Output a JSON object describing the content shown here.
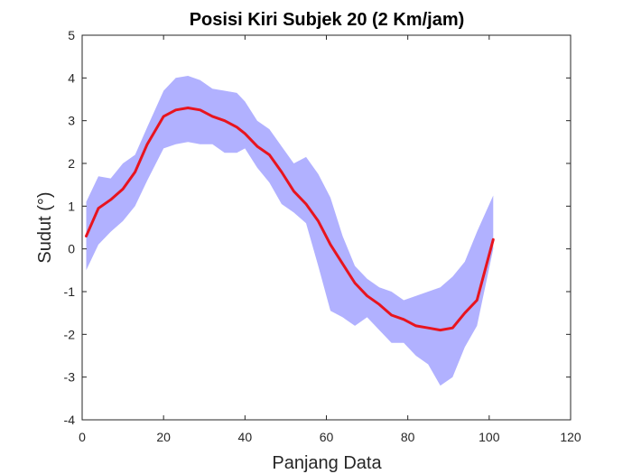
{
  "chart_data": {
    "type": "line",
    "title": "Posisi Kiri Subjek 20 (2 Km/jam)",
    "xlabel": "Panjang Data",
    "ylabel": "Sudut (°)",
    "xlim": [
      0,
      120
    ],
    "ylim": [
      -4,
      5
    ],
    "xticks": [
      0,
      20,
      40,
      60,
      80,
      100,
      120
    ],
    "yticks": [
      5,
      4,
      3,
      2,
      1,
      0,
      -1,
      -2,
      -3,
      -4
    ],
    "grid": false,
    "colors": {
      "mean_line": "#e8141e",
      "band": "#b1b1ff",
      "axis": "#262626"
    },
    "series": [
      {
        "name": "mean",
        "x": [
          1,
          4,
          7,
          10,
          13,
          16,
          20,
          23,
          26,
          29,
          32,
          35,
          38,
          40,
          43,
          46,
          49,
          52,
          55,
          58,
          61,
          64,
          67,
          70,
          73,
          76,
          79,
          82,
          85,
          88,
          91,
          94,
          97,
          101
        ],
        "values": [
          0.3,
          0.95,
          1.15,
          1.4,
          1.8,
          2.45,
          3.1,
          3.25,
          3.3,
          3.25,
          3.1,
          3.0,
          2.85,
          2.7,
          2.4,
          2.2,
          1.8,
          1.35,
          1.05,
          0.65,
          0.1,
          -0.35,
          -0.8,
          -1.1,
          -1.3,
          -1.55,
          -1.65,
          -1.8,
          -1.85,
          -1.9,
          -1.85,
          -1.5,
          -1.2,
          0.22
        ]
      },
      {
        "name": "upper",
        "x": [
          1,
          4,
          7,
          10,
          13,
          16,
          20,
          23,
          26,
          29,
          32,
          35,
          38,
          40,
          43,
          46,
          49,
          52,
          55,
          58,
          61,
          64,
          67,
          70,
          73,
          76,
          79,
          82,
          85,
          88,
          91,
          94,
          97,
          101
        ],
        "values": [
          1.1,
          1.7,
          1.65,
          2.0,
          2.2,
          2.85,
          3.7,
          4.0,
          4.05,
          3.95,
          3.75,
          3.7,
          3.65,
          3.45,
          3.0,
          2.8,
          2.4,
          2.0,
          2.15,
          1.75,
          1.2,
          0.3,
          -0.4,
          -0.7,
          -0.9,
          -1.0,
          -1.2,
          -1.1,
          -1.0,
          -0.9,
          -0.65,
          -0.3,
          0.4,
          1.25
        ]
      },
      {
        "name": "lower",
        "x": [
          1,
          4,
          7,
          10,
          13,
          16,
          20,
          23,
          26,
          29,
          32,
          35,
          38,
          40,
          43,
          46,
          49,
          52,
          55,
          58,
          61,
          64,
          67,
          70,
          73,
          76,
          79,
          82,
          85,
          88,
          91,
          94,
          97,
          101
        ],
        "values": [
          -0.5,
          0.1,
          0.4,
          0.65,
          1.0,
          1.6,
          2.35,
          2.45,
          2.5,
          2.45,
          2.45,
          2.25,
          2.25,
          2.35,
          1.9,
          1.55,
          1.05,
          0.85,
          0.6,
          -0.4,
          -1.45,
          -1.6,
          -1.8,
          -1.6,
          -1.9,
          -2.2,
          -2.2,
          -2.5,
          -2.7,
          -3.2,
          -3.0,
          -2.3,
          -1.8,
          0.0
        ]
      }
    ]
  }
}
